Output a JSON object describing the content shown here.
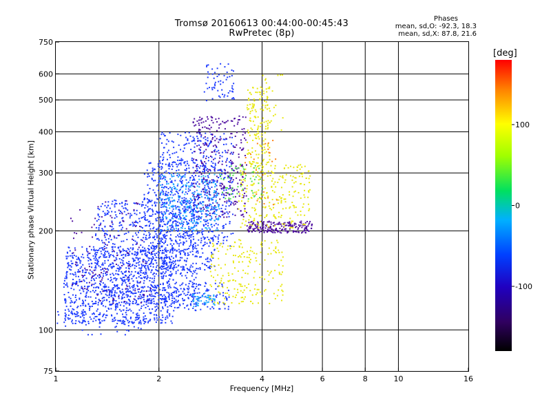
{
  "header": {
    "title_line1": "Tromsø 20160613 00:44:00-00:45:43",
    "title_line2": "RwPretec (8p)"
  },
  "stats": {
    "heading": "Phases",
    "o_line": "mean, sd,O: -92.3, 18.3",
    "x_line": "mean, sd,X: 87.8, 21.6"
  },
  "colorbar": {
    "title": "[deg]",
    "range": [
      -180,
      180
    ],
    "tick_labels": [
      "100",
      "0",
      "-100"
    ],
    "tick_values": [
      100,
      0,
      -100
    ]
  },
  "chart_data": {
    "type": "scatter",
    "title": "Tromsø 20160613 00:44:00-00:45:43",
    "subtitle": "RwPretec (8p)",
    "xlabel": "Frequency [MHz]",
    "ylabel": "Stationary phase Virtual Height [km]",
    "xscale": "log",
    "yscale": "log",
    "xlim": [
      1,
      16
    ],
    "ylim": [
      75,
      750
    ],
    "xticks": [
      1,
      2,
      4,
      6,
      8,
      10,
      16
    ],
    "xtick_labels": [
      "1",
      "2",
      "4",
      "6",
      "8",
      "10",
      "16"
    ],
    "yticks": [
      75,
      100,
      200,
      300,
      400,
      500,
      600,
      750
    ],
    "ytick_labels": [
      "75",
      "100",
      "200",
      "300",
      "400",
      "500",
      "600",
      "750"
    ],
    "grid": true,
    "grid_x": [
      2,
      4,
      6,
      8,
      10
    ],
    "grid_y": [
      100,
      200,
      300,
      400,
      500,
      600
    ],
    "color_meaning": "phase [deg]",
    "series": [
      {
        "color": "#1e3cff",
        "phase": -100,
        "clusters": [
          {
            "f": [
              1.0,
              2.0
            ],
            "h": [
              97,
              125
            ],
            "n": 80
          },
          {
            "f": [
              1.05,
              2.2
            ],
            "h": [
              105,
              180
            ],
            "n": 900
          },
          {
            "f": [
              1.3,
              2.6
            ],
            "h": [
              120,
              250
            ],
            "n": 700
          },
          {
            "f": [
              1.8,
              2.9
            ],
            "h": [
              150,
              330
            ],
            "n": 500
          },
          {
            "f": [
              2.0,
              3.3
            ],
            "h": [
              180,
              400
            ],
            "n": 500
          },
          {
            "f": [
              2.7,
              3.3
            ],
            "h": [
              500,
              650
            ],
            "n": 60
          },
          {
            "f": [
              2.2,
              3.2
            ],
            "h": [
              115,
              140
            ],
            "n": 120
          }
        ]
      },
      {
        "color": "#5010a0",
        "phase": -130,
        "clusters": [
          {
            "f": [
              2.5,
              3.6
            ],
            "h": [
              220,
              450
            ],
            "n": 300
          },
          {
            "f": [
              3.6,
              5.6
            ],
            "h": [
              198,
              215
            ],
            "n": 200
          },
          {
            "f": [
              1.1,
              1.9
            ],
            "h": [
              120,
              250
            ],
            "n": 120
          }
        ]
      },
      {
        "color": "#20a8ff",
        "phase": -60,
        "clusters": [
          {
            "f": [
              2.0,
              3.0
            ],
            "h": [
              200,
              300
            ],
            "n": 250
          },
          {
            "f": [
              2.5,
              2.9
            ],
            "h": [
              118,
              130
            ],
            "n": 50
          }
        ]
      },
      {
        "color": "#e8e810",
        "phase": 100,
        "clusters": [
          {
            "f": [
              3.4,
              5.5
            ],
            "h": [
              205,
              320
            ],
            "n": 250
          },
          {
            "f": [
              3.6,
              4.2
            ],
            "h": [
              320,
              550
            ],
            "n": 150
          },
          {
            "f": [
              2.8,
              4.6
            ],
            "h": [
              120,
              190
            ],
            "n": 200
          },
          {
            "f": [
              4.0,
              4.6
            ],
            "h": [
              400,
              600
            ],
            "n": 20
          }
        ]
      },
      {
        "color": "#50e050",
        "phase": 30,
        "clusters": [
          {
            "f": [
              3.0,
              4.0
            ],
            "h": [
              250,
              320
            ],
            "n": 60
          }
        ]
      },
      {
        "color": "#ff8010",
        "phase": 150,
        "clusters": [
          {
            "f": [
              3.5,
              4.5
            ],
            "h": [
              240,
              380
            ],
            "n": 25
          }
        ]
      }
    ]
  }
}
